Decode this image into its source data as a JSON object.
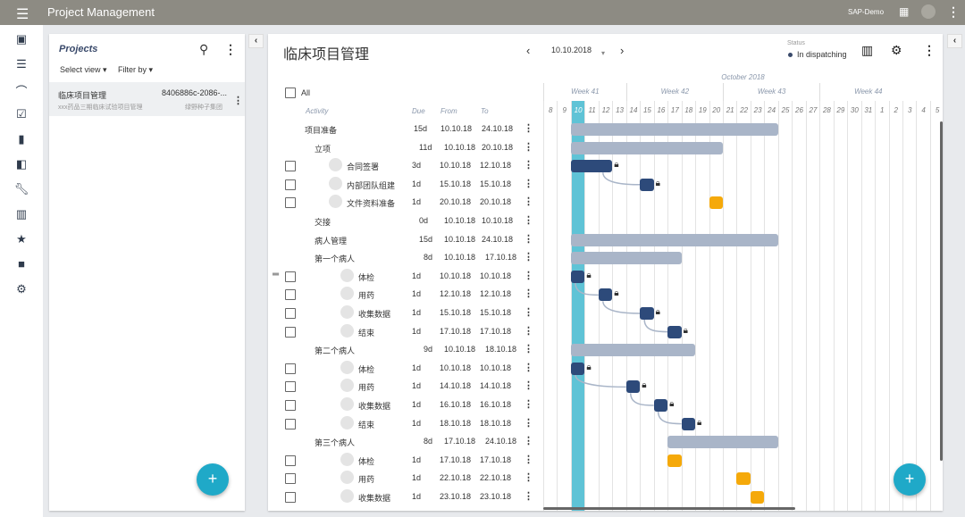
{
  "app": {
    "title": "Project Management",
    "user": "SAP-Demo"
  },
  "colors": {
    "topbar": "#8d8b83",
    "accent": "#1fa9c8",
    "summary_bar": "#a9b5c8",
    "task_bar": "#2d4a7a",
    "unscheduled_bar": "#f5a90a",
    "today": "#5fc3d6"
  },
  "rail": {
    "icons": [
      "calendar-icon",
      "filter-lines-icon",
      "activity-icon",
      "calendar-check-icon",
      "building-icon",
      "book-icon",
      "wrench-icon",
      "barcode-icon",
      "award-icon",
      "briefcase-icon",
      "gear-icon"
    ]
  },
  "projects": {
    "heading": "Projects",
    "select_view": "Select view",
    "filter_by": "Filter by",
    "item": {
      "name": "临床项目管理",
      "id": "8406886c-2086-...",
      "desc": "xxx药品三期临床试验项目管理",
      "company": "绿野种子集团"
    }
  },
  "main": {
    "title": "临床项目管理",
    "date": "10.10.2018",
    "status_label": "Status",
    "status_value": "In dispatching",
    "all_label": "All",
    "columns": {
      "activity": "Activity",
      "due": "Due",
      "from": "From",
      "to": "To"
    }
  },
  "gantt": {
    "month": "October 2018",
    "weeks": [
      "Week 41",
      "Week 42",
      "Week 43",
      "Week 44"
    ],
    "days": [
      "8",
      "9",
      "10",
      "11",
      "12",
      "13",
      "14",
      "15",
      "16",
      "17",
      "18",
      "19",
      "20",
      "21",
      "22",
      "23",
      "24",
      "25",
      "26",
      "27",
      "28",
      "29",
      "30",
      "31",
      "1",
      "2",
      "3",
      "4",
      "5"
    ],
    "today": "10"
  },
  "rows": [
    {
      "name": "项目准备",
      "level": 0,
      "due": "15d",
      "from": "10.10.18",
      "to": "24.10.18",
      "type": "summary",
      "start": 10,
      "end": 24
    },
    {
      "name": "立项",
      "level": 1,
      "due": "11d",
      "from": "10.10.18",
      "to": "20.10.18",
      "type": "summary",
      "start": 10,
      "end": 20
    },
    {
      "name": "合同签署",
      "level": 2,
      "due": "3d",
      "from": "10.10.18",
      "to": "12.10.18",
      "type": "task",
      "start": 10,
      "end": 12,
      "locked": true,
      "checkbox": true
    },
    {
      "name": "内部团队组建",
      "level": 2,
      "due": "1d",
      "from": "15.10.18",
      "to": "15.10.18",
      "type": "task",
      "start": 15,
      "end": 15,
      "locked": true,
      "checkbox": true
    },
    {
      "name": "文件资料准备",
      "level": 2,
      "due": "1d",
      "from": "20.10.18",
      "to": "20.10.18",
      "type": "open",
      "start": 20,
      "end": 20,
      "checkbox": true
    },
    {
      "name": "交接",
      "level": 1,
      "due": "0d",
      "from": "10.10.18",
      "to": "10.10.18",
      "type": "none"
    },
    {
      "name": "病人管理",
      "level": 1,
      "due": "15d",
      "from": "10.10.18",
      "to": "24.10.18",
      "type": "summary",
      "start": 10,
      "end": 24
    },
    {
      "name": "第一个病人",
      "level": 3,
      "due": "8d",
      "from": "10.10.18",
      "to": "17.10.18",
      "type": "summary",
      "start": 10,
      "end": 17
    },
    {
      "name": "体检",
      "level": 4,
      "due": "1d",
      "from": "10.10.18",
      "to": "10.10.18",
      "type": "task",
      "start": 10,
      "end": 10,
      "locked": true,
      "checkbox": true
    },
    {
      "name": "用药",
      "level": 4,
      "due": "1d",
      "from": "12.10.18",
      "to": "12.10.18",
      "type": "task",
      "start": 12,
      "end": 12,
      "locked": true,
      "checkbox": true
    },
    {
      "name": "收集数据",
      "level": 4,
      "due": "1d",
      "from": "15.10.18",
      "to": "15.10.18",
      "type": "task",
      "start": 15,
      "end": 15,
      "locked": true,
      "checkbox": true
    },
    {
      "name": "结束",
      "level": 4,
      "due": "1d",
      "from": "17.10.18",
      "to": "17.10.18",
      "type": "task",
      "start": 17,
      "end": 17,
      "locked": true,
      "checkbox": true
    },
    {
      "name": "第二个病人",
      "level": 3,
      "due": "9d",
      "from": "10.10.18",
      "to": "18.10.18",
      "type": "summary",
      "start": 10,
      "end": 18
    },
    {
      "name": "体检",
      "level": 4,
      "due": "1d",
      "from": "10.10.18",
      "to": "10.10.18",
      "type": "task",
      "start": 10,
      "end": 10,
      "locked": true,
      "checkbox": true
    },
    {
      "name": "用药",
      "level": 4,
      "due": "1d",
      "from": "14.10.18",
      "to": "14.10.18",
      "type": "task",
      "start": 14,
      "end": 14,
      "locked": true,
      "checkbox": true
    },
    {
      "name": "收集数据",
      "level": 4,
      "due": "1d",
      "from": "16.10.18",
      "to": "16.10.18",
      "type": "task",
      "start": 16,
      "end": 16,
      "locked": true,
      "checkbox": true
    },
    {
      "name": "结束",
      "level": 4,
      "due": "1d",
      "from": "18.10.18",
      "to": "18.10.18",
      "type": "task",
      "start": 18,
      "end": 18,
      "locked": true,
      "checkbox": true
    },
    {
      "name": "第三个病人",
      "level": 3,
      "due": "8d",
      "from": "17.10.18",
      "to": "24.10.18",
      "type": "summary",
      "start": 17,
      "end": 24
    },
    {
      "name": "体检",
      "level": 4,
      "due": "1d",
      "from": "17.10.18",
      "to": "17.10.18",
      "type": "open",
      "start": 17,
      "end": 17,
      "checkbox": true
    },
    {
      "name": "用药",
      "level": 4,
      "due": "1d",
      "from": "22.10.18",
      "to": "22.10.18",
      "type": "open",
      "start": 22,
      "end": 22,
      "checkbox": true
    },
    {
      "name": "收集数据",
      "level": 4,
      "due": "1d",
      "from": "23.10.18",
      "to": "23.10.18",
      "type": "open",
      "start": 23,
      "end": 23,
      "checkbox": true
    }
  ]
}
